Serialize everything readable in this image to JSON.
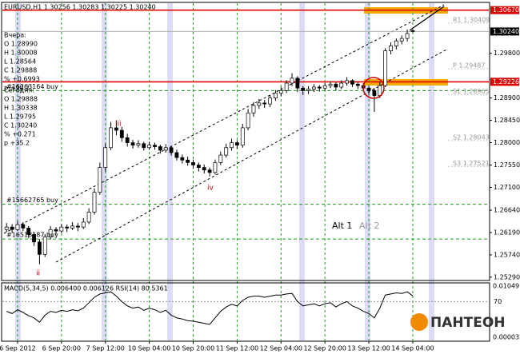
{
  "chart_data": {
    "type": "candlestick",
    "title": "EURUSD,H1  1.30256 1.30283 1.30225 1.30240",
    "info_yesterday": [
      "Вчера:",
      "O 1.28990",
      "H 1.30008",
      "L 1.28564",
      "C 1.29888",
      "% +0.6993",
      "p +90.2"
    ],
    "info_today": [
      "Сегодня:",
      "O 1.29888",
      "H 1.30338",
      "L 1.29795",
      "C 1.30240",
      "% +0.271",
      "p +35.2"
    ],
    "xlim": [
      -0.5,
      88
    ],
    "xticks": [
      {
        "value": 2,
        "label": "6 Sep 2012"
      },
      {
        "value": 10,
        "label": "6 Sep 20:00"
      },
      {
        "value": 18,
        "label": "7 Sep 12:00"
      },
      {
        "value": 26,
        "label": "10 Sep 04:00"
      },
      {
        "value": 34,
        "label": "10 Sep 20:00"
      },
      {
        "value": 42,
        "label": "11 Sep 12:00"
      },
      {
        "value": 50,
        "label": "12 Sep 04:00"
      },
      {
        "value": 58,
        "label": "12 Sep 20:00"
      },
      {
        "value": 66,
        "label": "13 Sep 12:00"
      },
      {
        "value": 74,
        "label": "14 Sep 04:00"
      }
    ],
    "ylim": [
      1.2524,
      1.3081
    ],
    "yticks": [
      {
        "value": 1.2529,
        "label": "1.25290"
      },
      {
        "value": 1.2574,
        "label": "1.25740"
      },
      {
        "value": 1.2619,
        "label": "1.26190"
      },
      {
        "value": 1.2664,
        "label": "1.26640"
      },
      {
        "value": 1.271,
        "label": "1.27100"
      },
      {
        "value": 1.2755,
        "label": "1.27550"
      },
      {
        "value": 1.28,
        "label": "1.28000"
      },
      {
        "value": 1.2845,
        "label": "1.28450"
      },
      {
        "value": 1.289,
        "label": "1.28900"
      },
      {
        "value": 1.298,
        "label": "1.29800"
      }
    ],
    "up_color": "#ffffff",
    "down_color": "#000000",
    "ohlc": [
      [
        1.2625,
        1.2638,
        1.262,
        1.263
      ],
      [
        1.263,
        1.2636,
        1.2618,
        1.2625
      ],
      [
        1.2625,
        1.2642,
        1.2622,
        1.2635
      ],
      [
        1.2635,
        1.264,
        1.2622,
        1.2628
      ],
      [
        1.2628,
        1.2632,
        1.2608,
        1.2615
      ],
      [
        1.2615,
        1.262,
        1.2592,
        1.26
      ],
      [
        1.26,
        1.2606,
        1.2555,
        1.2575
      ],
      [
        1.2575,
        1.2616,
        1.257,
        1.261
      ],
      [
        1.261,
        1.2632,
        1.2605,
        1.2625
      ],
      [
        1.2625,
        1.263,
        1.2615,
        1.2622
      ],
      [
        1.2622,
        1.2636,
        1.2618,
        1.263
      ],
      [
        1.263,
        1.2635,
        1.262,
        1.2628
      ],
      [
        1.2628,
        1.264,
        1.2624,
        1.2632
      ],
      [
        1.2632,
        1.2638,
        1.2622,
        1.263
      ],
      [
        1.263,
        1.2648,
        1.2626,
        1.264
      ],
      [
        1.264,
        1.2668,
        1.2636,
        1.266
      ],
      [
        1.266,
        1.2708,
        1.2655,
        1.27
      ],
      [
        1.27,
        1.276,
        1.2695,
        1.275
      ],
      [
        1.275,
        1.2798,
        1.2742,
        1.279
      ],
      [
        1.279,
        1.2842,
        1.2785,
        1.283
      ],
      [
        1.283,
        1.2845,
        1.2815,
        1.2825
      ],
      [
        1.2825,
        1.2832,
        1.2802,
        1.281
      ],
      [
        1.281,
        1.2818,
        1.2792,
        1.28
      ],
      [
        1.28,
        1.2806,
        1.2788,
        1.2795
      ],
      [
        1.2795,
        1.2805,
        1.279,
        1.2798
      ],
      [
        1.2798,
        1.2802,
        1.2784,
        1.279
      ],
      [
        1.279,
        1.2802,
        1.2786,
        1.2795
      ],
      [
        1.2795,
        1.28,
        1.2786,
        1.2792
      ],
      [
        1.2792,
        1.2796,
        1.2778,
        1.2785
      ],
      [
        1.2785,
        1.2797,
        1.278,
        1.279
      ],
      [
        1.279,
        1.2794,
        1.2774,
        1.278
      ],
      [
        1.278,
        1.2786,
        1.2764,
        1.277
      ],
      [
        1.277,
        1.2776,
        1.2758,
        1.2765
      ],
      [
        1.2765,
        1.2772,
        1.2754,
        1.276
      ],
      [
        1.276,
        1.2766,
        1.2748,
        1.2755
      ],
      [
        1.2755,
        1.276,
        1.2742,
        1.275
      ],
      [
        1.275,
        1.2756,
        1.2738,
        1.2745
      ],
      [
        1.2745,
        1.275,
        1.2732,
        1.274
      ],
      [
        1.274,
        1.2766,
        1.2736,
        1.276
      ],
      [
        1.276,
        1.2782,
        1.2755,
        1.2775
      ],
      [
        1.2775,
        1.2798,
        1.277,
        1.279
      ],
      [
        1.279,
        1.2808,
        1.2784,
        1.28
      ],
      [
        1.28,
        1.2805,
        1.2788,
        1.2795
      ],
      [
        1.2795,
        1.2838,
        1.279,
        1.283
      ],
      [
        1.283,
        1.2868,
        1.2825,
        1.286
      ],
      [
        1.286,
        1.2882,
        1.2852,
        1.2875
      ],
      [
        1.2875,
        1.2888,
        1.2868,
        1.288
      ],
      [
        1.288,
        1.2886,
        1.287,
        1.2878
      ],
      [
        1.2878,
        1.2896,
        1.2872,
        1.289
      ],
      [
        1.289,
        1.2906,
        1.2884,
        1.29
      ],
      [
        1.29,
        1.2912,
        1.2894,
        1.2905
      ],
      [
        1.2905,
        1.2926,
        1.29,
        1.292
      ],
      [
        1.292,
        1.294,
        1.2914,
        1.293
      ],
      [
        1.293,
        1.2934,
        1.2902,
        1.291
      ],
      [
        1.291,
        1.2914,
        1.2896,
        1.2905
      ],
      [
        1.2905,
        1.2914,
        1.2898,
        1.2908
      ],
      [
        1.2908,
        1.2918,
        1.2902,
        1.2912
      ],
      [
        1.2912,
        1.2916,
        1.2903,
        1.291
      ],
      [
        1.291,
        1.2921,
        1.2905,
        1.2915
      ],
      [
        1.2915,
        1.2924,
        1.291,
        1.2918
      ],
      [
        1.2918,
        1.2922,
        1.2905,
        1.2912
      ],
      [
        1.2912,
        1.2926,
        1.2908,
        1.292
      ],
      [
        1.292,
        1.2932,
        1.2915,
        1.2925
      ],
      [
        1.2925,
        1.2928,
        1.2912,
        1.2918
      ],
      [
        1.2918,
        1.2922,
        1.2908,
        1.2915
      ],
      [
        1.2915,
        1.292,
        1.2903,
        1.291
      ],
      [
        1.291,
        1.2914,
        1.2897,
        1.2905
      ],
      [
        1.2905,
        1.291,
        1.2862,
        1.2895
      ],
      [
        1.2895,
        1.2922,
        1.289,
        1.2915
      ],
      [
        1.2915,
        1.299,
        1.2912,
        1.2985
      ],
      [
        1.2985,
        1.3002,
        1.2978,
        1.2995
      ],
      [
        1.2995,
        1.301,
        1.2988,
        1.3005
      ],
      [
        1.3005,
        1.3016,
        1.2998,
        1.301
      ],
      [
        1.301,
        1.3028,
        1.3004,
        1.302
      ],
      [
        1.30256,
        1.30283,
        1.30225,
        1.3024
      ]
    ],
    "current_price": {
      "value": 1.3024,
      "label": "1.30240"
    },
    "levels": [
      {
        "value": 1.3067,
        "label": "1.30670",
        "color": "#e00000"
      },
      {
        "value": 1.29226,
        "label": "1.29226",
        "color": "#e00000"
      }
    ],
    "pivots": [
      {
        "value": 1.30409,
        "label": "R1 1.30409"
      },
      {
        "value": 1.29487,
        "label": "P 1.29487"
      },
      {
        "value": 1.28965,
        "label": "S1 1.28965"
      },
      {
        "value": 1.28043,
        "label": "S2 1.28043"
      },
      {
        "value": 1.27521,
        "label": "S3 1.27521"
      }
    ],
    "orders": [
      {
        "value": 1.2905,
        "label": "#16263164 buy"
      },
      {
        "value": 1.2676,
        "label": "#15662765 buy"
      },
      {
        "value": 1.2606,
        "label": "#16518187 buy"
      }
    ],
    "annotations": [
      "ii",
      "iii",
      "iv",
      "Alt 1",
      "Alt 2"
    ],
    "indicator": {
      "label": "MACD(5,34,5) 0.006400 0.006126  RSI(14) 80.5361",
      "ylim": [
        0,
        100
      ],
      "yticks": [
        70
      ],
      "axis_labels": [
        "0.010491",
        "0.000032"
      ],
      "color": "#000000",
      "values": [
        52,
        48,
        55,
        50,
        44,
        40,
        32,
        45,
        52,
        50,
        54,
        52,
        55,
        53,
        58,
        68,
        78,
        84,
        86,
        88,
        80,
        70,
        62,
        58,
        60,
        54,
        58,
        55,
        50,
        54,
        45,
        40,
        38,
        35,
        34,
        32,
        30,
        28,
        40,
        52,
        60,
        65,
        62,
        72,
        78,
        80,
        80,
        78,
        80,
        82,
        82,
        84,
        85,
        70,
        62,
        64,
        66,
        62,
        66,
        68,
        60,
        66,
        70,
        62,
        58,
        52,
        48,
        40,
        58,
        82,
        84,
        86,
        85,
        88,
        80.5361
      ]
    },
    "logo": "ПАНТЕОН"
  }
}
